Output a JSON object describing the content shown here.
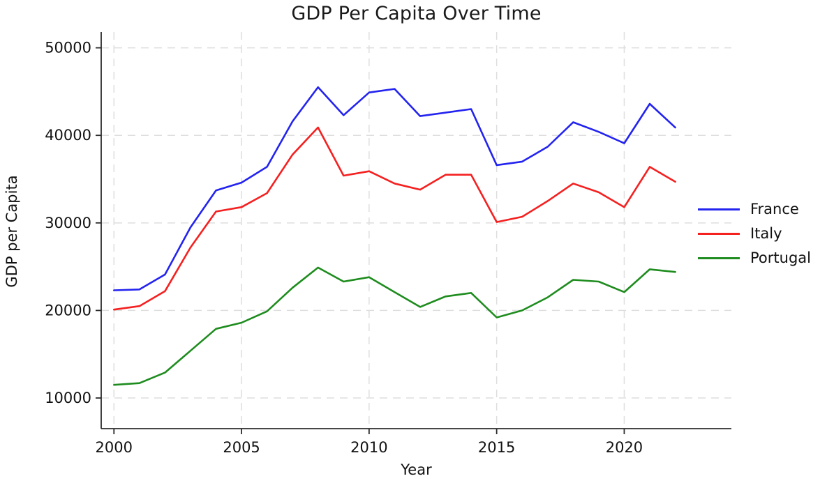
{
  "chart_data": {
    "type": "line",
    "title": "GDP Per Capita Over Time",
    "xlabel": "Year",
    "ylabel": "GDP per Capita",
    "grid": true,
    "legend_position": "right",
    "xlim": [
      1999.5,
      2024.2
    ],
    "ylim": [
      6500,
      51800
    ],
    "xticks": [
      2000,
      2005,
      2010,
      2015,
      2020
    ],
    "yticks": [
      10000,
      20000,
      30000,
      40000,
      50000
    ],
    "x": [
      2000,
      2001,
      2002,
      2003,
      2004,
      2005,
      2006,
      2007,
      2008,
      2009,
      2010,
      2011,
      2012,
      2013,
      2014,
      2015,
      2016,
      2017,
      2018,
      2019,
      2020,
      2021,
      2022
    ],
    "series": [
      {
        "name": "France",
        "color": "#2323f0",
        "values": [
          22300,
          22400,
          24100,
          29500,
          33700,
          34600,
          36400,
          41600,
          45500,
          42300,
          44900,
          45300,
          42200,
          42600,
          43000,
          36600,
          37000,
          38700,
          41500,
          40400,
          39100,
          43600,
          40900
        ]
      },
      {
        "name": "Italy",
        "color": "#f52020",
        "values": [
          20100,
          20500,
          22200,
          27200,
          31300,
          31800,
          33400,
          37800,
          40900,
          35400,
          35900,
          34500,
          33800,
          35500,
          35500,
          30100,
          30700,
          32500,
          34500,
          33500,
          31800,
          36400,
          34700
        ]
      },
      {
        "name": "Portugal",
        "color": "#1e8c1e",
        "values": [
          11500,
          11700,
          12900,
          15400,
          17900,
          18600,
          19900,
          22600,
          24900,
          23300,
          23800,
          22100,
          20400,
          21600,
          22000,
          19200,
          20000,
          21500,
          23500,
          23300,
          22100,
          24700,
          24400
        ]
      }
    ],
    "colors": {
      "grid": "#dedede",
      "axis": "#2b2b2b",
      "text": "#111111",
      "background": "#ffffff"
    }
  }
}
